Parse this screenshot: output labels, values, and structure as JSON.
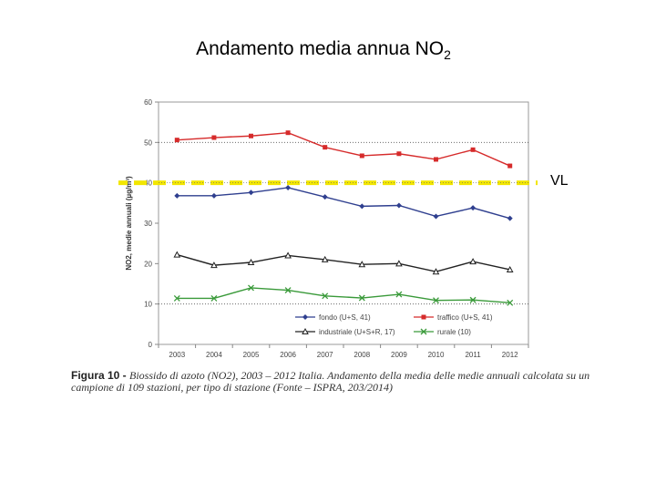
{
  "slide": {
    "title_main": "Andamento media annua NO",
    "title_sub": "2",
    "vl_label": "VL"
  },
  "caption": {
    "label": "Figura 10 - ",
    "text": "Biossido di azoto (NO2), 2003 – 2012 Italia. Andamento della media delle medie annuali calcolata su un campione di 109 stazioni, per tipo di stazione (Fonte – ISPRA, 203/2014)"
  },
  "chart_data": {
    "type": "line",
    "title": "",
    "xlabel": "",
    "ylabel": "NO2, medie annuali (µg/m³)",
    "x": [
      "2003",
      "2004",
      "2005",
      "2006",
      "2007",
      "2008",
      "2009",
      "2010",
      "2011",
      "2012"
    ],
    "ylim": [
      0,
      60
    ],
    "yticks": [
      0,
      10,
      20,
      30,
      40,
      50,
      60
    ],
    "reference_lines": [
      {
        "value": 50,
        "style": "dotted",
        "color": "#555555"
      },
      {
        "value": 40,
        "style": "dashed",
        "color": "#f2e600",
        "label": "VL"
      },
      {
        "value": 10,
        "style": "dotted",
        "color": "#555555"
      }
    ],
    "series": [
      {
        "name": "fondo (U+S, 41)",
        "color": "#2f3f8f",
        "marker": "diamond",
        "values": [
          36.8,
          36.8,
          37.6,
          38.8,
          36.5,
          34.2,
          34.4,
          31.7,
          33.8,
          31.2
        ]
      },
      {
        "name": "traffico (U+S, 41)",
        "color": "#d62b2b",
        "marker": "square",
        "values": [
          50.6,
          51.2,
          51.6,
          52.4,
          48.8,
          46.7,
          47.2,
          45.8,
          48.2,
          44.2
        ]
      },
      {
        "name": "industriale (U+S+R, 17)",
        "color": "#222222",
        "marker": "triangle",
        "values": [
          22.2,
          19.6,
          20.3,
          22.0,
          21.0,
          19.8,
          20.0,
          18.0,
          20.5,
          18.5
        ]
      },
      {
        "name": "rurale (10)",
        "color": "#3a9a3a",
        "marker": "cross",
        "values": [
          11.4,
          11.4,
          14.0,
          13.4,
          12.0,
          11.5,
          12.4,
          10.9,
          11.0,
          10.3
        ]
      }
    ],
    "legend_position": "bottom-inside",
    "grid": false
  }
}
